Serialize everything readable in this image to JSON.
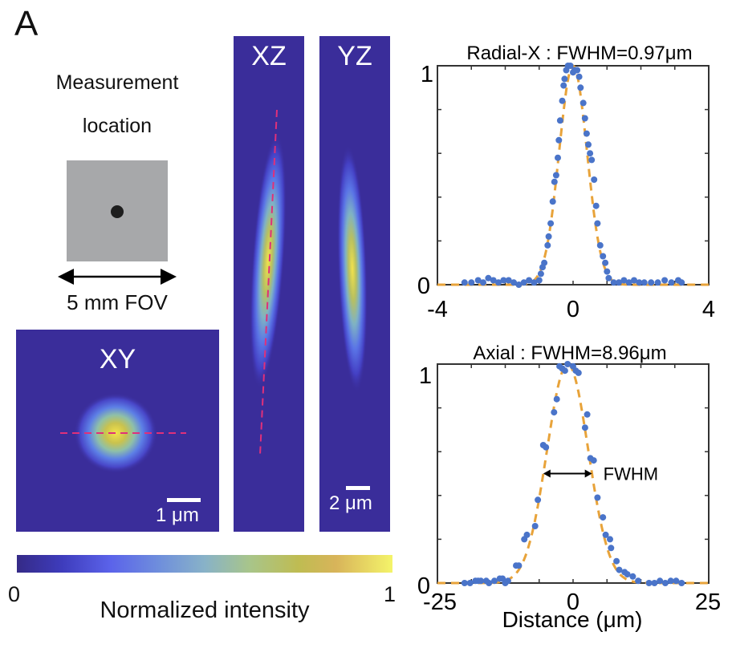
{
  "figure": {
    "panel_letter": "A",
    "location": {
      "title_line1": "Measurement",
      "title_line2": "location",
      "fov_label": "5 mm FOV",
      "box_color": "#a7a8aa",
      "dot_color": "#1e1e1e"
    },
    "images": {
      "background_color": "#3a2d9a",
      "guide_line_color": "#e0307a",
      "xy": {
        "title": "XY",
        "scale_label": "1 μm"
      },
      "xz": {
        "title": "XZ"
      },
      "yz": {
        "title": "YZ",
        "scale_label": "2 μm"
      }
    },
    "colorbar": {
      "min_label": "0",
      "max_label": "1",
      "label": "Normalized intensity",
      "colors": [
        "#352a87",
        "#3e3cbc",
        "#5b63ea",
        "#6f8fdc",
        "#88b2c8",
        "#a8c58a",
        "#bfbc52",
        "#d8b45a",
        "#f4f46a"
      ]
    }
  },
  "chart_data": [
    {
      "type": "scatter",
      "title": "Radial-X : FWHM=0.97μm",
      "xlabel": "",
      "ylabel": "",
      "xlim": [
        -4,
        4
      ],
      "ylim": [
        0,
        1
      ],
      "xticks": [
        "-4",
        "0",
        "4"
      ],
      "yticks": [
        "0",
        "1"
      ],
      "fit": {
        "type": "gaussian",
        "center": 0,
        "fwhm": 0.97,
        "color": "#e8a33a",
        "style": "dashed"
      },
      "points_color": "#4a74c9",
      "points": [
        [
          -3.2,
          0.01
        ],
        [
          -3.0,
          0.01
        ],
        [
          -2.8,
          0.02
        ],
        [
          -2.65,
          0.01
        ],
        [
          -2.5,
          0.03
        ],
        [
          -2.35,
          0.02
        ],
        [
          -2.2,
          0.01
        ],
        [
          -2.05,
          0.02
        ],
        [
          -1.9,
          0.02
        ],
        [
          -1.75,
          0.01
        ],
        [
          -1.6,
          0.0
        ],
        [
          -1.45,
          0.01
        ],
        [
          -1.3,
          0.02
        ],
        [
          -1.15,
          0.01
        ],
        [
          -1.0,
          0.02
        ],
        [
          -0.95,
          0.05
        ],
        [
          -0.9,
          0.08
        ],
        [
          -0.85,
          0.1
        ],
        [
          -0.75,
          0.18
        ],
        [
          -0.72,
          0.22
        ],
        [
          -0.66,
          0.28
        ],
        [
          -0.6,
          0.38
        ],
        [
          -0.55,
          0.47
        ],
        [
          -0.5,
          0.5
        ],
        [
          -0.45,
          0.58
        ],
        [
          -0.42,
          0.66
        ],
        [
          -0.38,
          0.75
        ],
        [
          -0.32,
          0.84
        ],
        [
          -0.28,
          0.91
        ],
        [
          -0.25,
          0.94
        ],
        [
          -0.2,
          0.98
        ],
        [
          -0.15,
          1.0
        ],
        [
          -0.08,
          1.0
        ],
        [
          0.0,
          0.97
        ],
        [
          0.05,
          0.98
        ],
        [
          0.12,
          0.98
        ],
        [
          0.18,
          0.95
        ],
        [
          0.22,
          0.9
        ],
        [
          0.3,
          0.83
        ],
        [
          0.35,
          0.76
        ],
        [
          0.4,
          0.69
        ],
        [
          0.45,
          0.64
        ],
        [
          0.5,
          0.6
        ],
        [
          0.55,
          0.57
        ],
        [
          0.62,
          0.48
        ],
        [
          0.68,
          0.36
        ],
        [
          0.72,
          0.28
        ],
        [
          0.8,
          0.18
        ],
        [
          0.88,
          0.13
        ],
        [
          0.95,
          0.1
        ],
        [
          1.0,
          0.06
        ],
        [
          1.05,
          0.03
        ],
        [
          1.2,
          0.01
        ],
        [
          1.35,
          0.01
        ],
        [
          1.5,
          0.02
        ],
        [
          1.65,
          0.01
        ],
        [
          1.8,
          0.02
        ],
        [
          1.95,
          0.01
        ],
        [
          2.1,
          0.01
        ],
        [
          2.3,
          0.01
        ],
        [
          2.5,
          0.01
        ],
        [
          2.7,
          0.02
        ],
        [
          2.9,
          0.01
        ],
        [
          3.1,
          0.02
        ],
        [
          3.2,
          0.01
        ]
      ]
    },
    {
      "type": "scatter",
      "title": "Axial : FWHM=8.96μm",
      "xlabel": "Distance (μm)",
      "ylabel": "",
      "xlim": [
        -25,
        25
      ],
      "ylim": [
        0,
        1
      ],
      "xticks": [
        "-25",
        "0",
        "25"
      ],
      "yticks": [
        "0",
        "1"
      ],
      "fit": {
        "type": "gaussian",
        "center": -1,
        "fwhm": 8.96,
        "color": "#e8a33a",
        "style": "dashed"
      },
      "points_color": "#4a74c9",
      "points": [
        [
          -20,
          0.0
        ],
        [
          -19,
          0.0
        ],
        [
          -18,
          0.01
        ],
        [
          -17.5,
          0.01
        ],
        [
          -17,
          0.01
        ],
        [
          -16,
          0.01
        ],
        [
          -15.5,
          0.0
        ],
        [
          -14.5,
          0.01
        ],
        [
          -13.5,
          0.02
        ],
        [
          -13,
          0.02
        ],
        [
          -12.5,
          0.0
        ],
        [
          -12,
          0.01
        ],
        [
          -10.5,
          0.08
        ],
        [
          -10,
          0.08
        ],
        [
          -9,
          0.2
        ],
        [
          -8.5,
          0.22
        ],
        [
          -7,
          0.26
        ],
        [
          -6.5,
          0.38
        ],
        [
          -5.5,
          0.63
        ],
        [
          -5,
          0.62
        ],
        [
          -3.5,
          0.78
        ],
        [
          -3.0,
          0.84
        ],
        [
          -2.5,
          0.99
        ],
        [
          -2.0,
          0.98
        ],
        [
          -1.5,
          0.97
        ],
        [
          -1.0,
          1.0
        ],
        [
          0.0,
          0.99
        ],
        [
          0.5,
          0.97
        ],
        [
          1.0,
          0.96
        ],
        [
          2.2,
          0.71
        ],
        [
          2.6,
          0.77
        ],
        [
          3.2,
          0.57
        ],
        [
          3.8,
          0.56
        ],
        [
          4.5,
          0.39
        ],
        [
          5.5,
          0.3
        ],
        [
          6.0,
          0.22
        ],
        [
          6.8,
          0.2
        ],
        [
          7.0,
          0.16
        ],
        [
          8.0,
          0.1
        ],
        [
          8.5,
          0.06
        ],
        [
          9.5,
          0.05
        ],
        [
          10,
          0.04
        ],
        [
          11,
          0.03
        ],
        [
          12,
          0.01
        ],
        [
          14,
          0.0
        ],
        [
          15,
          0.0
        ],
        [
          16,
          0.01
        ],
        [
          17,
          0.0
        ],
        [
          18,
          0.01
        ],
        [
          19,
          0.01
        ],
        [
          20,
          0.0
        ]
      ],
      "annotation": {
        "text": "FWHM",
        "type": "double-arrow",
        "x_from": -5.5,
        "x_to": 3.5,
        "y": 0.5
      }
    }
  ]
}
